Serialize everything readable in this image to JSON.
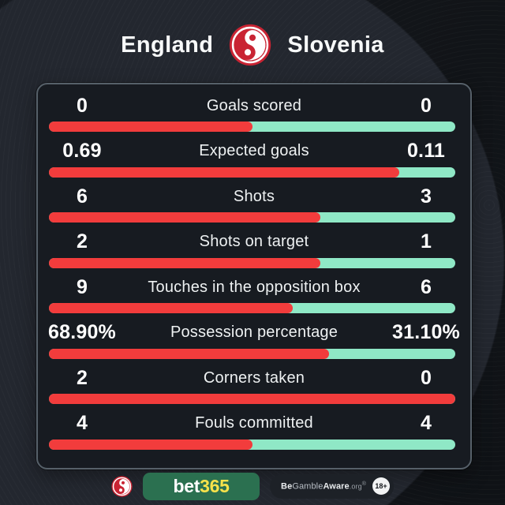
{
  "header": {
    "home_team": "England",
    "away_team": "Slovenia"
  },
  "stats": {
    "rows": [
      {
        "label": "Goals scored",
        "left": "0",
        "right": "0",
        "left_pct": 50
      },
      {
        "label": "Expected goals",
        "left": "0.69",
        "right": "0.11",
        "left_pct": 86.25
      },
      {
        "label": "Shots",
        "left": "6",
        "right": "3",
        "left_pct": 66.7
      },
      {
        "label": "Shots on target",
        "left": "2",
        "right": "1",
        "left_pct": 66.7
      },
      {
        "label": "Touches in the opposition box",
        "left": "9",
        "right": "6",
        "left_pct": 60
      },
      {
        "label": "Possession percentage",
        "left": "68.90%",
        "right": "31.10%",
        "left_pct": 68.9
      },
      {
        "label": "Corners taken",
        "left": "2",
        "right": "0",
        "left_pct": 100
      },
      {
        "label": "Fouls committed",
        "left": "4",
        "right": "4",
        "left_pct": 50
      }
    ]
  },
  "footer": {
    "brand_bet": "bet",
    "brand_365": "365",
    "aware_be": "Be",
    "aware_gamble": "Gamble",
    "aware_aware": "Aware",
    "aware_org": ".org",
    "aware_reg": "®",
    "age_badge": "18+"
  },
  "colors": {
    "home_bar": "#f23c3c",
    "away_bar": "#8fe8c6",
    "logo_red": "#c92433",
    "brand_green": "#2b7050",
    "brand_yellow": "#f8e24a",
    "panel_bg": "#171b21",
    "panel_border": "#566069"
  },
  "chart_data": {
    "type": "bar",
    "orientation": "horizontal-paired",
    "title": "England vs Slovenia match stats",
    "categories": [
      "Goals scored",
      "Expected goals",
      "Shots",
      "Shots on target",
      "Touches in the opposition box",
      "Possession percentage",
      "Corners taken",
      "Fouls committed"
    ],
    "series": [
      {
        "name": "England",
        "color": "#f23c3c",
        "values": [
          0,
          0.69,
          6,
          2,
          9,
          68.9,
          2,
          4
        ]
      },
      {
        "name": "Slovenia",
        "color": "#8fe8c6",
        "values": [
          0,
          0.11,
          3,
          1,
          6,
          31.1,
          0,
          4
        ]
      }
    ],
    "value_labels_shown": true,
    "legend_position": "none",
    "grid": false
  }
}
